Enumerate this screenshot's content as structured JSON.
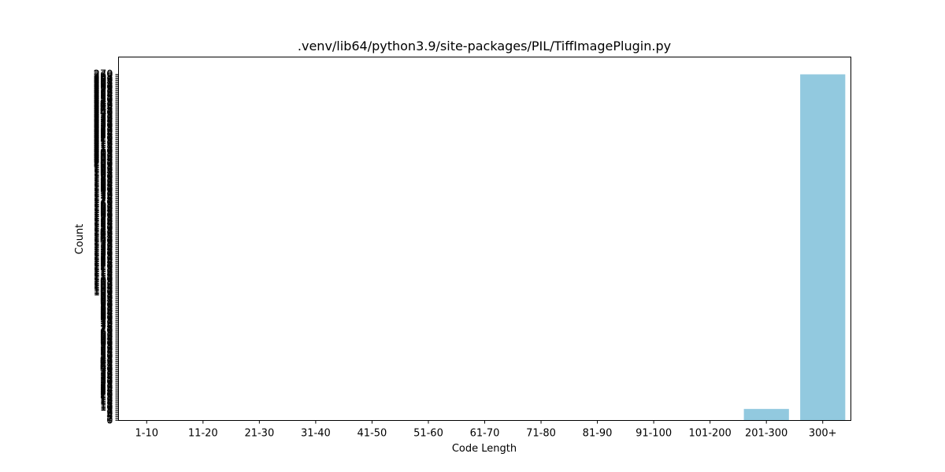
{
  "chart_data": {
    "type": "bar",
    "title": ".venv/lib64/python3.9/site-packages/PIL/TiffImagePlugin.py",
    "xlabel": "Code Length",
    "ylabel": "Count",
    "categories": [
      "1-10",
      "11-20",
      "21-30",
      "31-40",
      "41-50",
      "51-60",
      "61-70",
      "71-80",
      "81-90",
      "91-100",
      "101-200",
      "201-300",
      "300+"
    ],
    "values": [
      0,
      0,
      0,
      0,
      0,
      0,
      0,
      0,
      0,
      0,
      0,
      9,
      270
    ],
    "ylim": [
      0,
      283.5
    ],
    "yticks_note": "integer ticks 0..270 overlapping",
    "bar_color": "#92c9df",
    "grid": false,
    "legend": "none"
  }
}
